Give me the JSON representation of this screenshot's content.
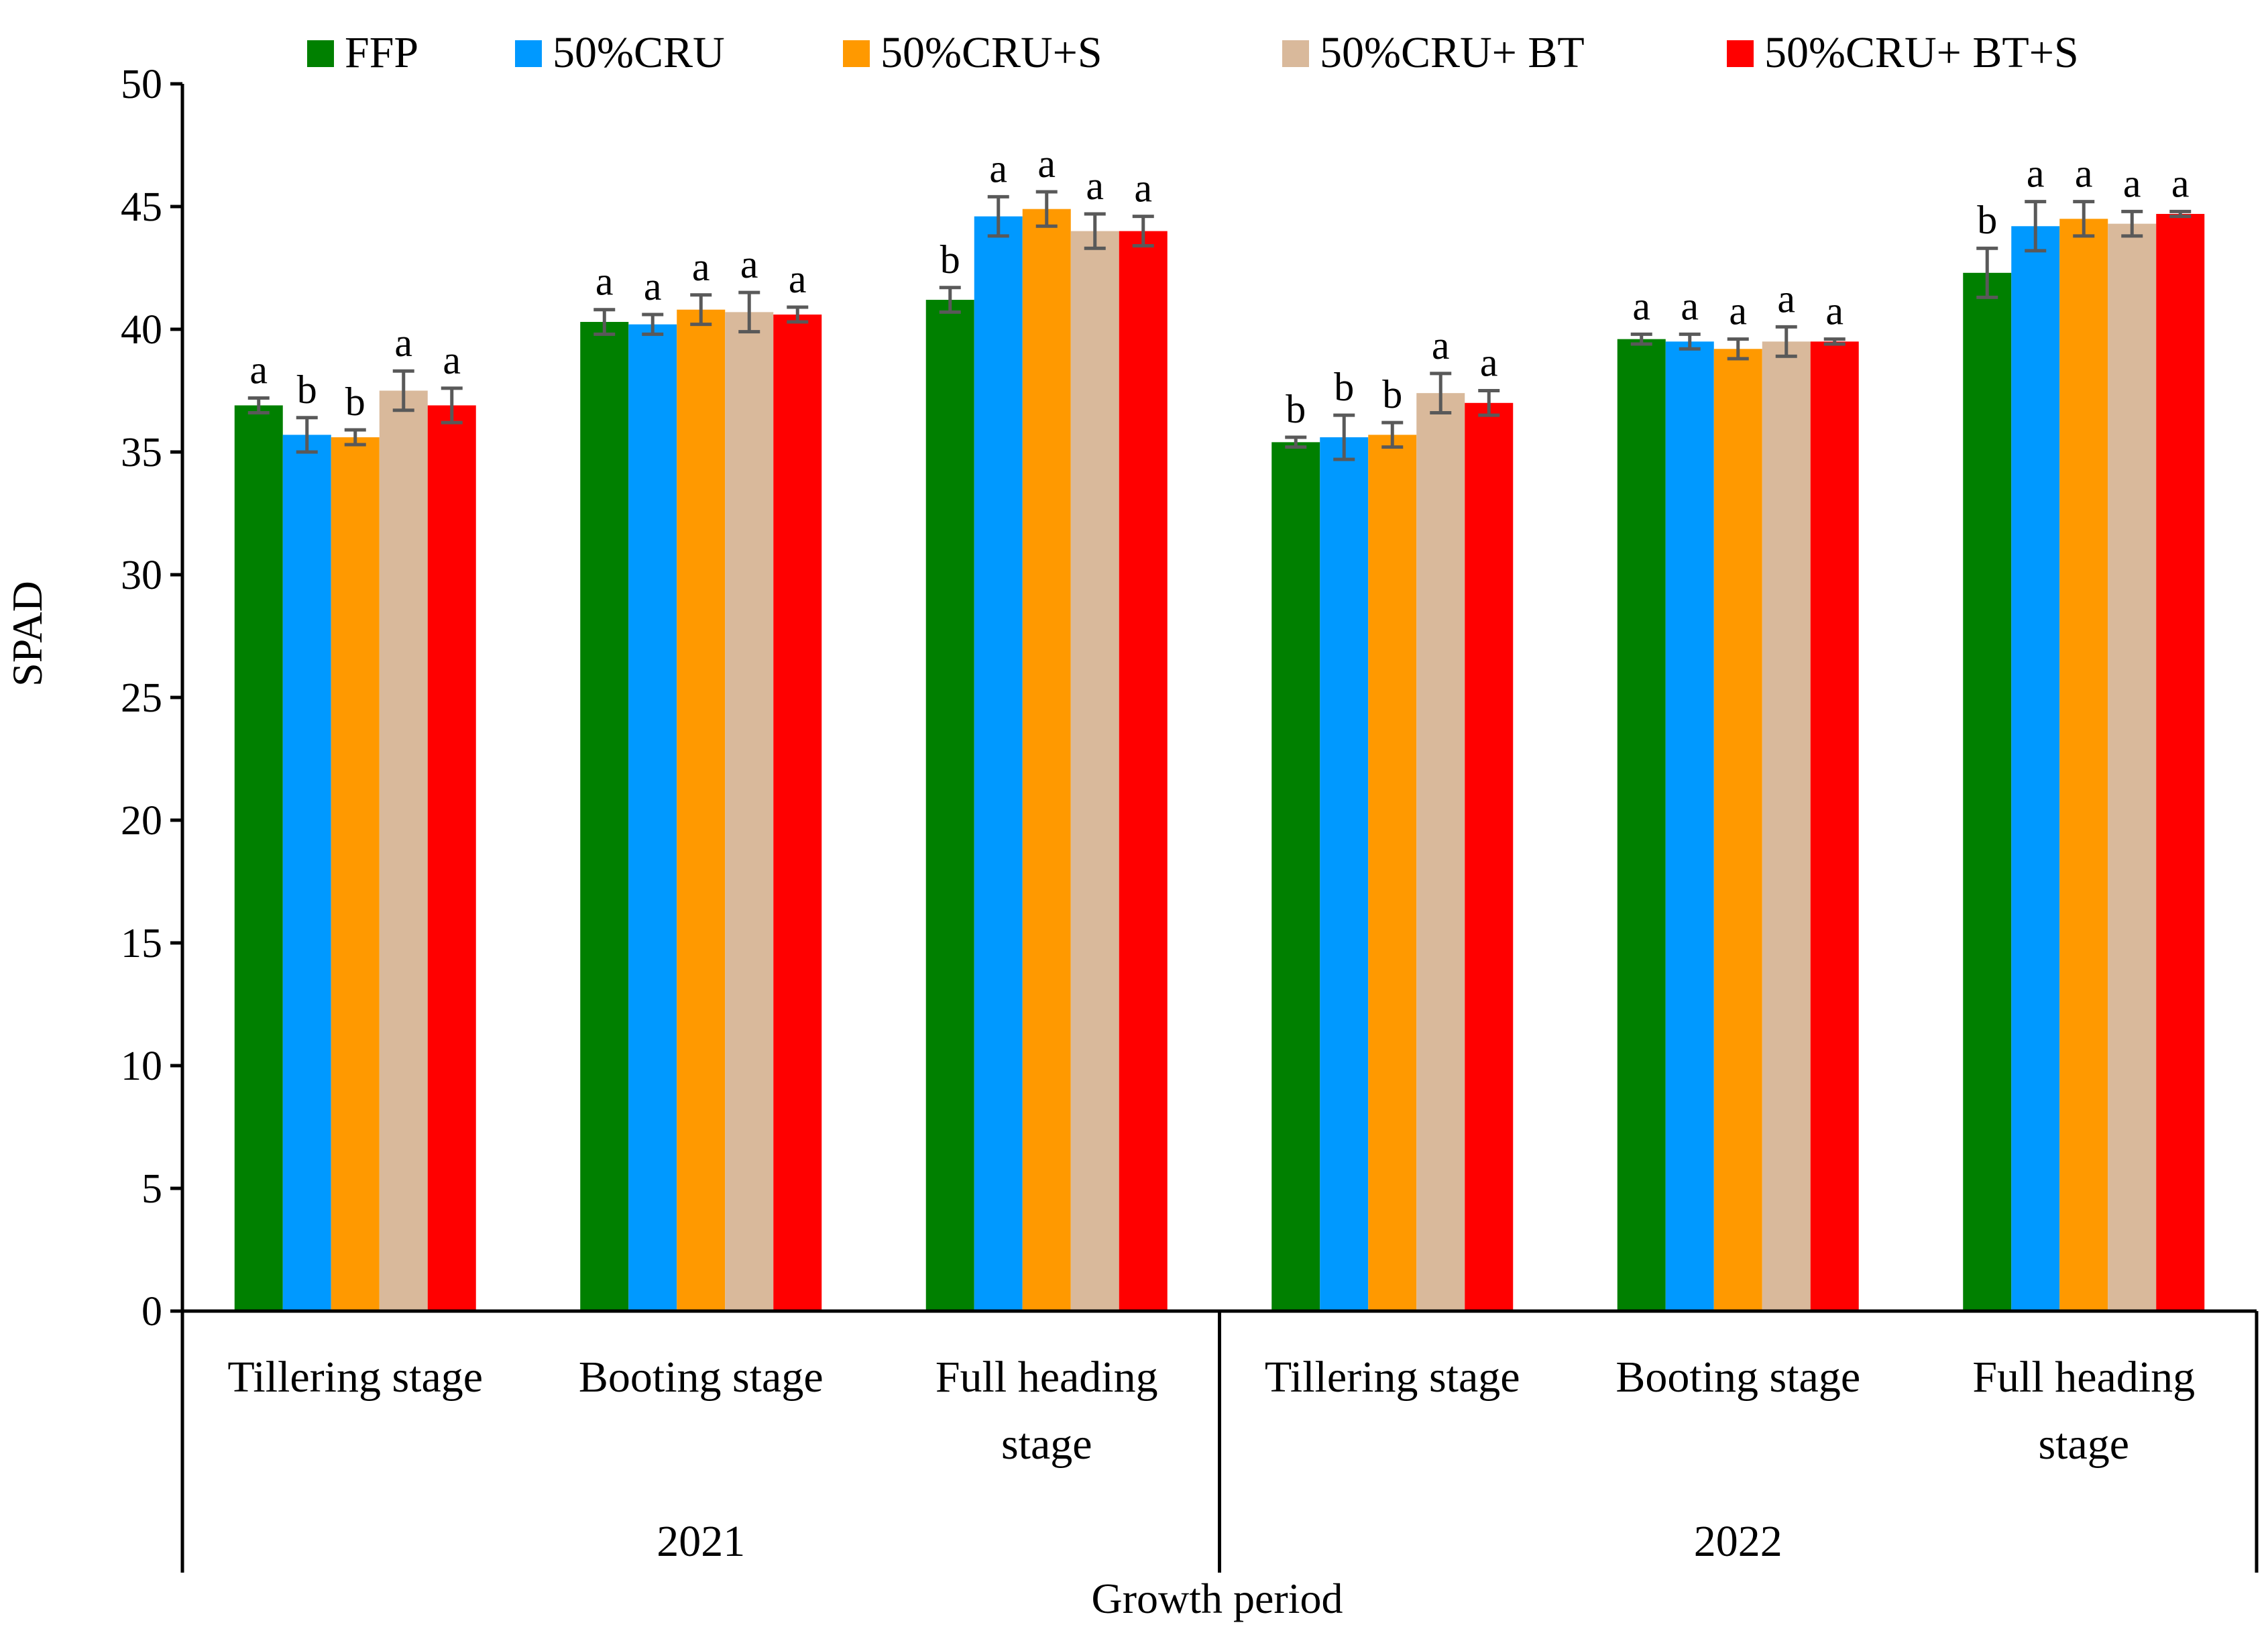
{
  "chart_data": {
    "type": "bar",
    "title": "",
    "xlabel": "Growth period",
    "ylabel": "SPAD",
    "ylim": [
      0,
      50
    ],
    "yticks": [
      0,
      5,
      10,
      15,
      20,
      25,
      30,
      35,
      40,
      45,
      50
    ],
    "legend_position": "top",
    "grid": false,
    "years": [
      {
        "label": "2021",
        "categories": [
          "Tillering  stage",
          "Booting stage",
          "Full heading stage"
        ]
      },
      {
        "label": "2022",
        "categories": [
          "Tillering  stage",
          "Booting stage",
          "Full heading stage"
        ]
      }
    ],
    "categories": [
      "Tillering  stage",
      "Booting stage",
      "Full heading stage",
      "Tillering  stage",
      "Booting stage",
      "Full heading stage"
    ],
    "category_lines": [
      [
        "Tillering  stage"
      ],
      [
        "Booting stage"
      ],
      [
        "Full heading",
        "stage"
      ],
      [
        "Tillering  stage"
      ],
      [
        "Booting stage"
      ],
      [
        "Full heading",
        "stage"
      ]
    ],
    "series": [
      {
        "name": "FFP",
        "color": "#008000",
        "values": [
          36.9,
          40.3,
          41.2,
          35.4,
          39.6,
          42.3
        ],
        "errors": [
          0.3,
          0.5,
          0.5,
          0.2,
          0.2,
          1.0
        ],
        "letters": [
          "a",
          "a",
          "b",
          "b",
          "a",
          "b"
        ]
      },
      {
        "name": "50%CRU",
        "color": "#0099FF",
        "values": [
          35.7,
          40.2,
          44.6,
          35.6,
          39.5,
          44.2
        ],
        "errors": [
          0.7,
          0.4,
          0.8,
          0.9,
          0.3,
          1.0
        ],
        "letters": [
          "b",
          "a",
          "a",
          "b",
          "a",
          "a"
        ]
      },
      {
        "name": "50%CRU+S",
        "color": "#FF9900",
        "values": [
          35.6,
          40.8,
          44.9,
          35.7,
          39.2,
          44.5
        ],
        "errors": [
          0.3,
          0.6,
          0.7,
          0.5,
          0.4,
          0.7
        ],
        "letters": [
          "b",
          "a",
          "a",
          "b",
          "a",
          "a"
        ]
      },
      {
        "name": "50%CRU+ BT",
        "color": "#D9B99B",
        "values": [
          37.5,
          40.7,
          44.0,
          37.4,
          39.5,
          44.3
        ],
        "errors": [
          0.8,
          0.8,
          0.7,
          0.8,
          0.6,
          0.5
        ],
        "letters": [
          "a",
          "a",
          "a",
          "a",
          "a",
          "a"
        ]
      },
      {
        "name": "50%CRU+ BT+S",
        "color": "#FF0000",
        "values": [
          36.9,
          40.6,
          44.0,
          37.0,
          39.5,
          44.7
        ],
        "errors": [
          0.7,
          0.3,
          0.6,
          0.5,
          0.1,
          0.1
        ],
        "letters": [
          "a",
          "a",
          "a",
          "a",
          "a",
          "a"
        ]
      }
    ],
    "error_bar_color": "#595959"
  }
}
